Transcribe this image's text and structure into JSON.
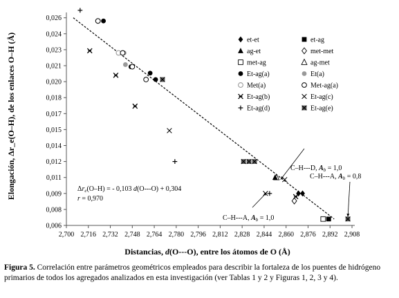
{
  "chart_data": {
    "type": "scatter",
    "title": "",
    "xlabel_prefix": "Distancias, ",
    "xlabel_var": "d",
    "xlabel_suffix": "(O---O), entre los átomos de O (Å)",
    "ylabel": "Elongación, Δr_e(O–H), de los enlaces O–H (Å)",
    "xlim": [
      2.7,
      2.91
    ],
    "ylim": [
      0.006,
      0.026
    ],
    "x_ticks": [
      "2,700",
      "2,716",
      "2,732",
      "2,748",
      "2,764",
      "2,780",
      "2,796",
      "2,812",
      "2,828",
      "2,844",
      "2,860",
      "2,876",
      "2,892",
      "2,908"
    ],
    "x_tick_values": [
      2.7,
      2.716,
      2.732,
      2.748,
      2.764,
      2.78,
      2.796,
      2.812,
      2.828,
      2.844,
      2.86,
      2.876,
      2.892,
      2.908
    ],
    "y_ticks": [
      "0,006",
      "0,008",
      "0,009",
      "0,011",
      "0,012",
      "0,014",
      "0,015",
      "0,017",
      "0,018",
      "0,020",
      "0,021",
      "0,023",
      "0,024",
      "0,026"
    ],
    "y_tick_values": [
      0.006,
      0.0075,
      0.009,
      0.0105,
      0.012,
      0.0135,
      0.015,
      0.0165,
      0.018,
      0.0195,
      0.021,
      0.0225,
      0.024,
      0.0255
    ],
    "series": [
      {
        "name": "et-et",
        "marker": "diamond-filled",
        "points": [
          [
            2.872,
            0.009
          ],
          [
            2.869,
            0.009
          ]
        ]
      },
      {
        "name": "et-ag",
        "marker": "square-filled",
        "points": [
          [
            2.891,
            0.0066
          ]
        ]
      },
      {
        "name": "ag-et",
        "marker": "triangle-filled",
        "points": [
          [
            2.852,
            0.0105
          ]
        ]
      },
      {
        "name": "met-met",
        "marker": "diamond-open",
        "points": [
          [
            2.866,
            0.0083
          ]
        ]
      },
      {
        "name": "met-ag",
        "marker": "square-open",
        "points": [
          [
            2.887,
            0.0066
          ]
        ]
      },
      {
        "name": "ag-met",
        "marker": "triangle-open",
        "points": [
          [
            2.853,
            0.0105
          ]
        ]
      },
      {
        "name": "Et-ag(a)",
        "marker": "circle-filled",
        "points": [
          [
            2.727,
            0.0252
          ],
          [
            2.747,
            0.0209
          ],
          [
            2.761,
            0.0203
          ],
          [
            2.765,
            0.0197
          ]
        ]
      },
      {
        "name": "Et(a)",
        "marker": "circle-gray",
        "points": [
          [
            2.742,
            0.0222
          ],
          [
            2.743,
            0.0211
          ]
        ]
      },
      {
        "name": "Met(a)",
        "marker": "circle-open-gray",
        "points": [
          [
            2.738,
            0.0222
          ]
        ]
      },
      {
        "name": "Met-ag(a)",
        "marker": "circle-open",
        "points": [
          [
            2.723,
            0.0252
          ],
          [
            2.741,
            0.0222
          ],
          [
            2.748,
            0.0209
          ],
          [
            2.758,
            0.0197
          ]
        ]
      },
      {
        "name": "Et-ag(b)",
        "marker": "x-star",
        "points": [
          [
            2.717,
            0.0224
          ],
          [
            2.736,
            0.0201
          ],
          [
            2.75,
            0.0172
          ],
          [
            2.867,
            0.0087
          ]
        ]
      },
      {
        "name": "Et-ag(c)",
        "marker": "x",
        "points": [
          [
            2.775,
            0.0149
          ],
          [
            2.859,
            0.0103
          ],
          [
            2.845,
            0.009
          ]
        ]
      },
      {
        "name": "Et-ag(d)",
        "marker": "plus",
        "points": [
          [
            2.71,
            0.0262
          ],
          [
            2.779,
            0.012
          ],
          [
            2.848,
            0.009
          ]
        ]
      },
      {
        "name": "Et-ag(e)",
        "marker": "x-square",
        "points": [
          [
            2.77,
            0.0197
          ],
          [
            2.829,
            0.012
          ],
          [
            2.833,
            0.012
          ],
          [
            2.837,
            0.012
          ],
          [
            2.905,
            0.0066
          ]
        ]
      }
    ],
    "trendline": {
      "slope": -0.103,
      "intercept": 0.304,
      "x_range": [
        2.705,
        2.895
      ]
    },
    "equation_label": "= - 0,103",
    "equation_rhs": "(O---O) + 0,304",
    "r_label": "= 0,970",
    "annotations": [
      {
        "text": "C–H---D,",
        "sub": "= 1,0",
        "target": [
          2.856,
          0.0103
        ]
      },
      {
        "text": "C–H---A,",
        "sub": "= 0,8",
        "target": [
          2.905,
          0.0068
        ]
      },
      {
        "text": "C–H---A,",
        "sub": "= 1,0",
        "target": [
          2.846,
          0.0091
        ]
      }
    ],
    "legend_position": "right"
  },
  "caption": {
    "label": "Figura 5.",
    "text": " Correlación entre parámetros geométricos empleados para describir la fortaleza de los puentes de hidrógeno primarios de todos los agregados analizados en esta investigación (ver Tablas 1 y 2 y Figuras 1, 2, 3 y 4)."
  },
  "colors": {
    "gray_marker": "#999999",
    "axis": "#555555"
  }
}
